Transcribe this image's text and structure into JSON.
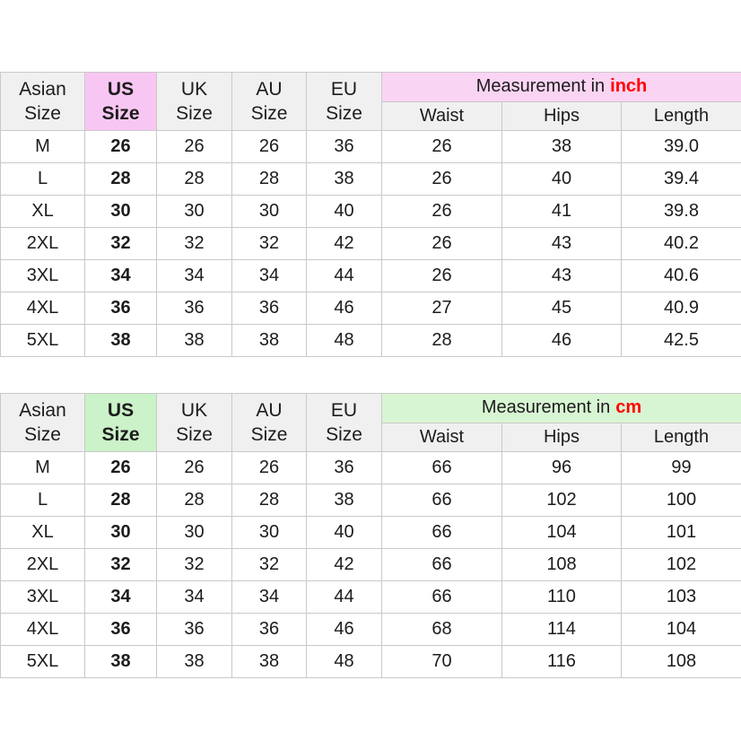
{
  "style": {
    "border_color": "#c9c9c9",
    "header_bg": "#f0f0f0",
    "text_color": "#1c1c1c",
    "unit_color": "#ff0000"
  },
  "tables": [
    {
      "name": "measurement-in-inch",
      "highlight": {
        "us_cell": "#f8c6f2",
        "banner": "#fad4f3"
      },
      "columns": [
        {
          "line1": "Asian",
          "line2": "Size"
        },
        {
          "line1": "US",
          "line2": "Size"
        },
        {
          "line1": "UK",
          "line2": "Size"
        },
        {
          "line1": "AU",
          "line2": "Size"
        },
        {
          "line1": "EU",
          "line2": "Size"
        }
      ],
      "banner": {
        "prefix": "Measurement in",
        "unit": "inch"
      },
      "measure_columns": [
        "Waist",
        "Hips",
        "Length"
      ],
      "rows": [
        [
          "M",
          "26",
          "26",
          "26",
          "36",
          "26",
          "38",
          "39.0"
        ],
        [
          "L",
          "28",
          "28",
          "28",
          "38",
          "26",
          "40",
          "39.4"
        ],
        [
          "XL",
          "30",
          "30",
          "30",
          "40",
          "26",
          "41",
          "39.8"
        ],
        [
          "2XL",
          "32",
          "32",
          "32",
          "42",
          "26",
          "43",
          "40.2"
        ],
        [
          "3XL",
          "34",
          "34",
          "34",
          "44",
          "26",
          "43",
          "40.6"
        ],
        [
          "4XL",
          "36",
          "36",
          "36",
          "46",
          "27",
          "45",
          "40.9"
        ],
        [
          "5XL",
          "38",
          "38",
          "38",
          "48",
          "28",
          "46",
          "42.5"
        ]
      ]
    },
    {
      "name": "measurement-in-cm",
      "highlight": {
        "us_cell": "#cbf2c8",
        "banner": "#d8f5d3"
      },
      "columns": [
        {
          "line1": "Asian",
          "line2": "Size"
        },
        {
          "line1": "US",
          "line2": "Size"
        },
        {
          "line1": "UK",
          "line2": "Size"
        },
        {
          "line1": "AU",
          "line2": "Size"
        },
        {
          "line1": "EU",
          "line2": "Size"
        }
      ],
      "banner": {
        "prefix": "Measurement in",
        "unit": "cm"
      },
      "measure_columns": [
        "Waist",
        "Hips",
        "Length"
      ],
      "rows": [
        [
          "M",
          "26",
          "26",
          "26",
          "36",
          "66",
          "96",
          "99"
        ],
        [
          "L",
          "28",
          "28",
          "28",
          "38",
          "66",
          "102",
          "100"
        ],
        [
          "XL",
          "30",
          "30",
          "30",
          "40",
          "66",
          "104",
          "101"
        ],
        [
          "2XL",
          "32",
          "32",
          "32",
          "42",
          "66",
          "108",
          "102"
        ],
        [
          "3XL",
          "34",
          "34",
          "34",
          "44",
          "66",
          "110",
          "103"
        ],
        [
          "4XL",
          "36",
          "36",
          "36",
          "46",
          "68",
          "114",
          "104"
        ],
        [
          "5XL",
          "38",
          "38",
          "38",
          "48",
          "70",
          "116",
          "108"
        ]
      ]
    }
  ]
}
